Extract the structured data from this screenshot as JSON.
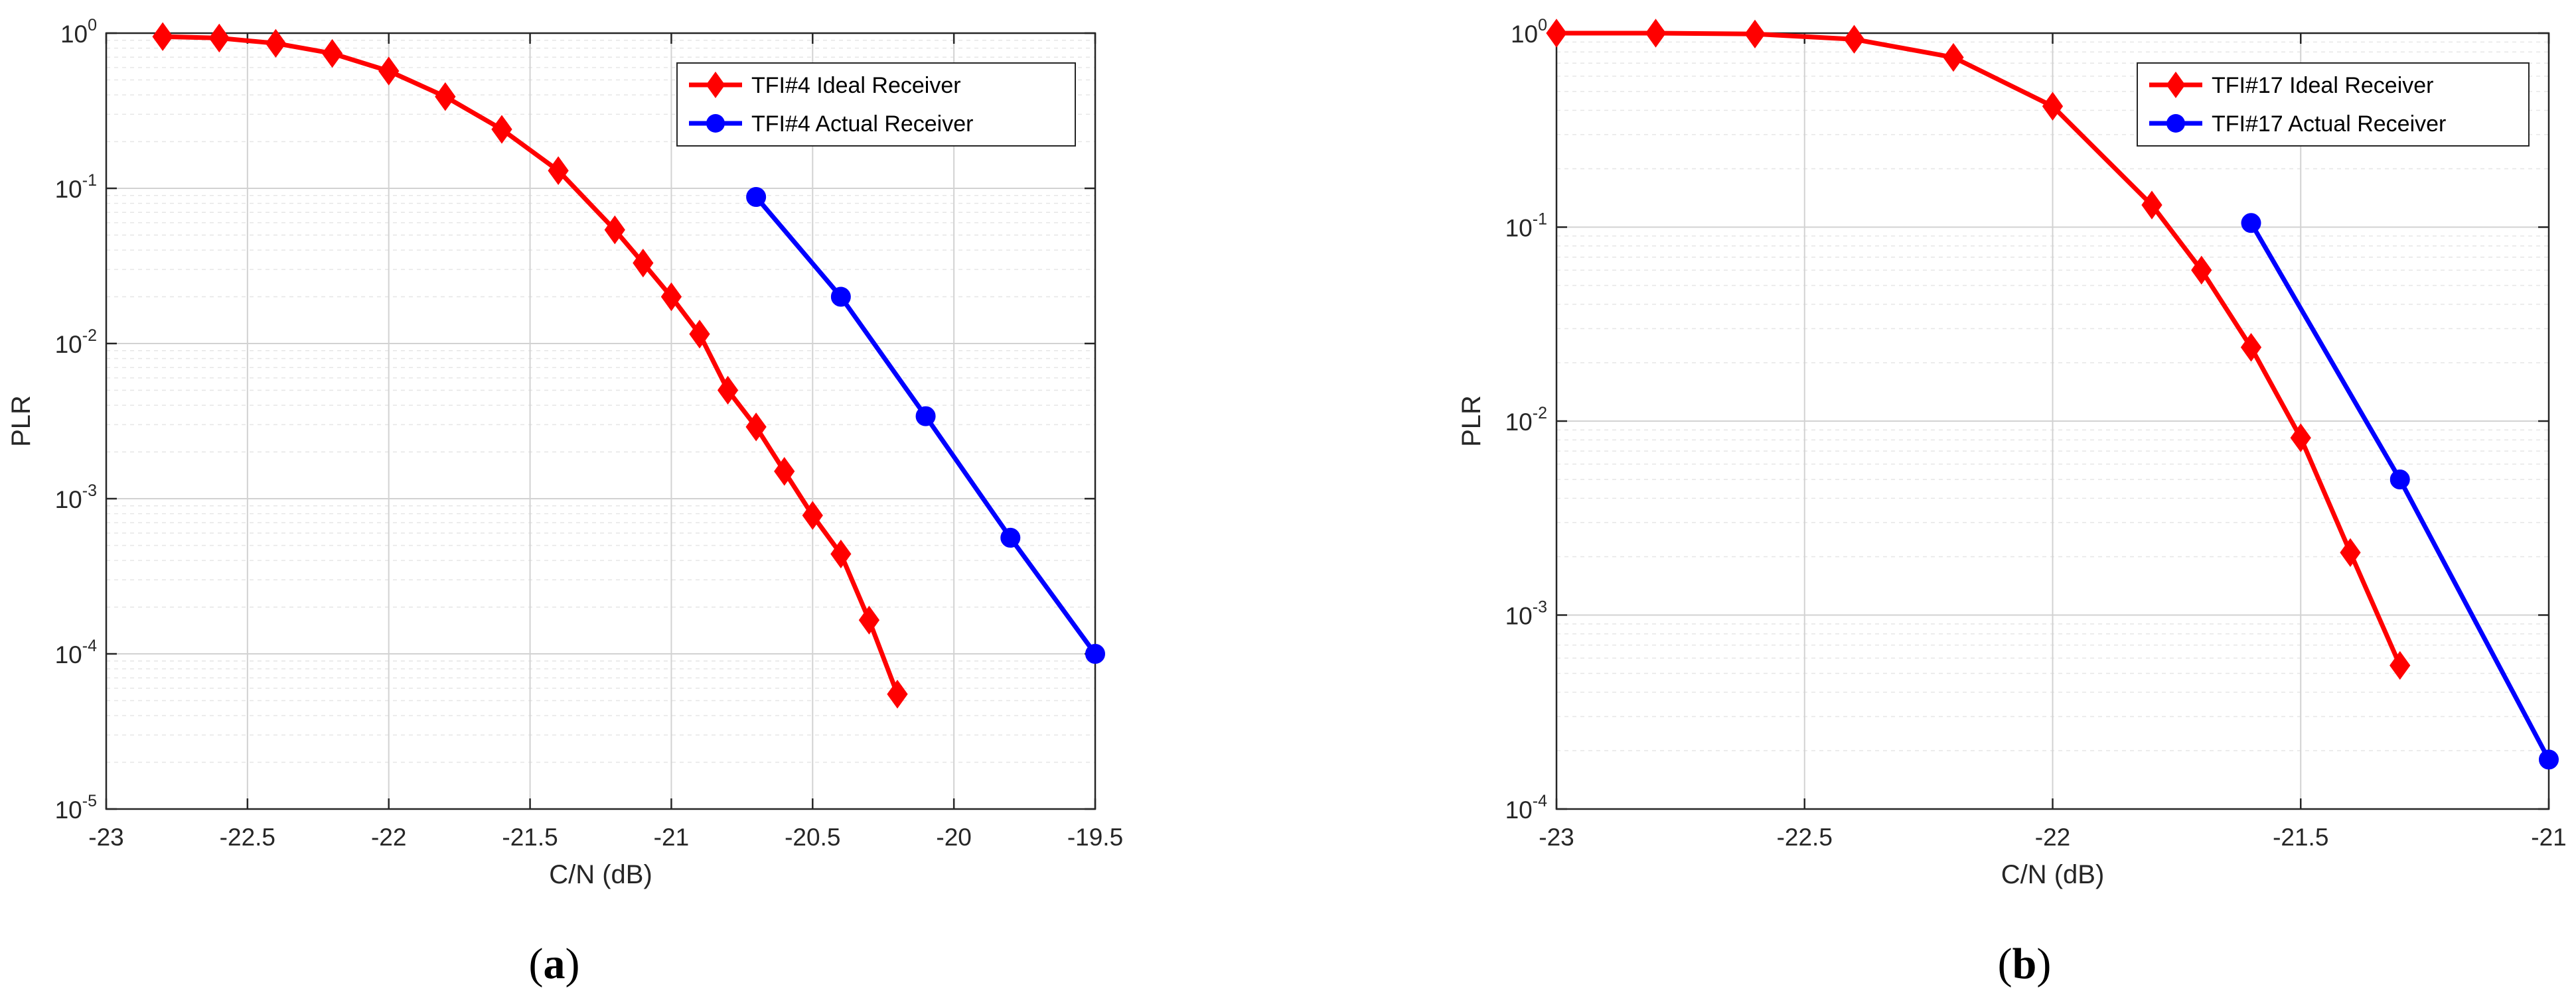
{
  "figure": {
    "captions": [
      {
        "open": "(",
        "letter": "a",
        "close": ")"
      },
      {
        "open": "(",
        "letter": "b",
        "close": ")"
      }
    ]
  },
  "chart_data": [
    {
      "type": "line",
      "title": "",
      "xlabel": "C/N (dB)",
      "ylabel": "PLR",
      "xlim": [
        -23,
        -19.5
      ],
      "ylim": [
        1e-05,
        1
      ],
      "yscale": "log",
      "grid": true,
      "legend_position": "top-right",
      "x_ticks": [
        -23,
        -22.5,
        -22,
        -21.5,
        -21,
        -20.5,
        -20,
        -19.5
      ],
      "x_tick_labels": [
        "-23",
        "-22.5",
        "-22",
        "-21.5",
        "-21",
        "-20.5",
        "-20",
        "-19.5"
      ],
      "y_ticks": [
        {
          "base": "10",
          "exp": "-5",
          "value": 1e-05
        },
        {
          "base": "10",
          "exp": "-4",
          "value": 0.0001
        },
        {
          "base": "10",
          "exp": "-3",
          "value": 0.001
        },
        {
          "base": "10",
          "exp": "-2",
          "value": 0.01
        },
        {
          "base": "10",
          "exp": "-1",
          "value": 0.1
        },
        {
          "base": "10",
          "exp": "0",
          "value": 1
        }
      ],
      "series": [
        {
          "name": "TFI#4 Ideal Receiver",
          "color": "#ff0000",
          "marker": "diamond",
          "x": [
            -22.8,
            -22.6,
            -22.4,
            -22.2,
            -22.0,
            -21.8,
            -21.6,
            -21.4,
            -21.2,
            -21.1,
            -21.0,
            -20.9,
            -20.8,
            -20.7,
            -20.6,
            -20.5,
            -20.4,
            -20.3,
            -20.2
          ],
          "y": [
            0.95,
            0.93,
            0.86,
            0.74,
            0.57,
            0.39,
            0.24,
            0.13,
            0.054,
            0.033,
            0.02,
            0.0115,
            0.005,
            0.0029,
            0.0015,
            0.00078,
            0.00044,
            0.000165,
            5.5e-05
          ]
        },
        {
          "name": "TFI#4 Actual Receiver",
          "color": "#0000ff",
          "marker": "circle",
          "x": [
            -20.7,
            -20.4,
            -20.1,
            -19.8,
            -19.5
          ],
          "y": [
            0.088,
            0.02,
            0.0034,
            0.00056,
            0.0001
          ]
        }
      ]
    },
    {
      "type": "line",
      "title": "",
      "xlabel": "C/N (dB)",
      "ylabel": "PLR",
      "xlim": [
        -23,
        -21
      ],
      "ylim": [
        0.0001,
        1
      ],
      "yscale": "log",
      "grid": true,
      "legend_position": "top-right",
      "x_ticks": [
        -23,
        -22.5,
        -22,
        -21.5,
        -21
      ],
      "x_tick_labels": [
        "-23",
        "-22.5",
        "-22",
        "-21.5",
        "-21"
      ],
      "y_ticks": [
        {
          "base": "10",
          "exp": "-4",
          "value": 0.0001
        },
        {
          "base": "10",
          "exp": "-3",
          "value": 0.001
        },
        {
          "base": "10",
          "exp": "-2",
          "value": 0.01
        },
        {
          "base": "10",
          "exp": "-1",
          "value": 0.1
        },
        {
          "base": "10",
          "exp": "0",
          "value": 1
        }
      ],
      "series": [
        {
          "name": "TFI#17 Ideal Receiver",
          "color": "#ff0000",
          "marker": "diamond",
          "x": [
            -23.0,
            -22.8,
            -22.6,
            -22.4,
            -22.2,
            -22.0,
            -21.8,
            -21.7,
            -21.6,
            -21.5,
            -21.4,
            -21.3
          ],
          "y": [
            1.0,
            1.0,
            0.99,
            0.93,
            0.75,
            0.42,
            0.13,
            0.06,
            0.024,
            0.0082,
            0.0021,
            0.00055
          ]
        },
        {
          "name": "TFI#17 Actual Receiver",
          "color": "#0000ff",
          "marker": "circle",
          "x": [
            -21.6,
            -21.3,
            -21.0
          ],
          "y": [
            0.105,
            0.005,
            0.00018
          ]
        }
      ]
    }
  ]
}
